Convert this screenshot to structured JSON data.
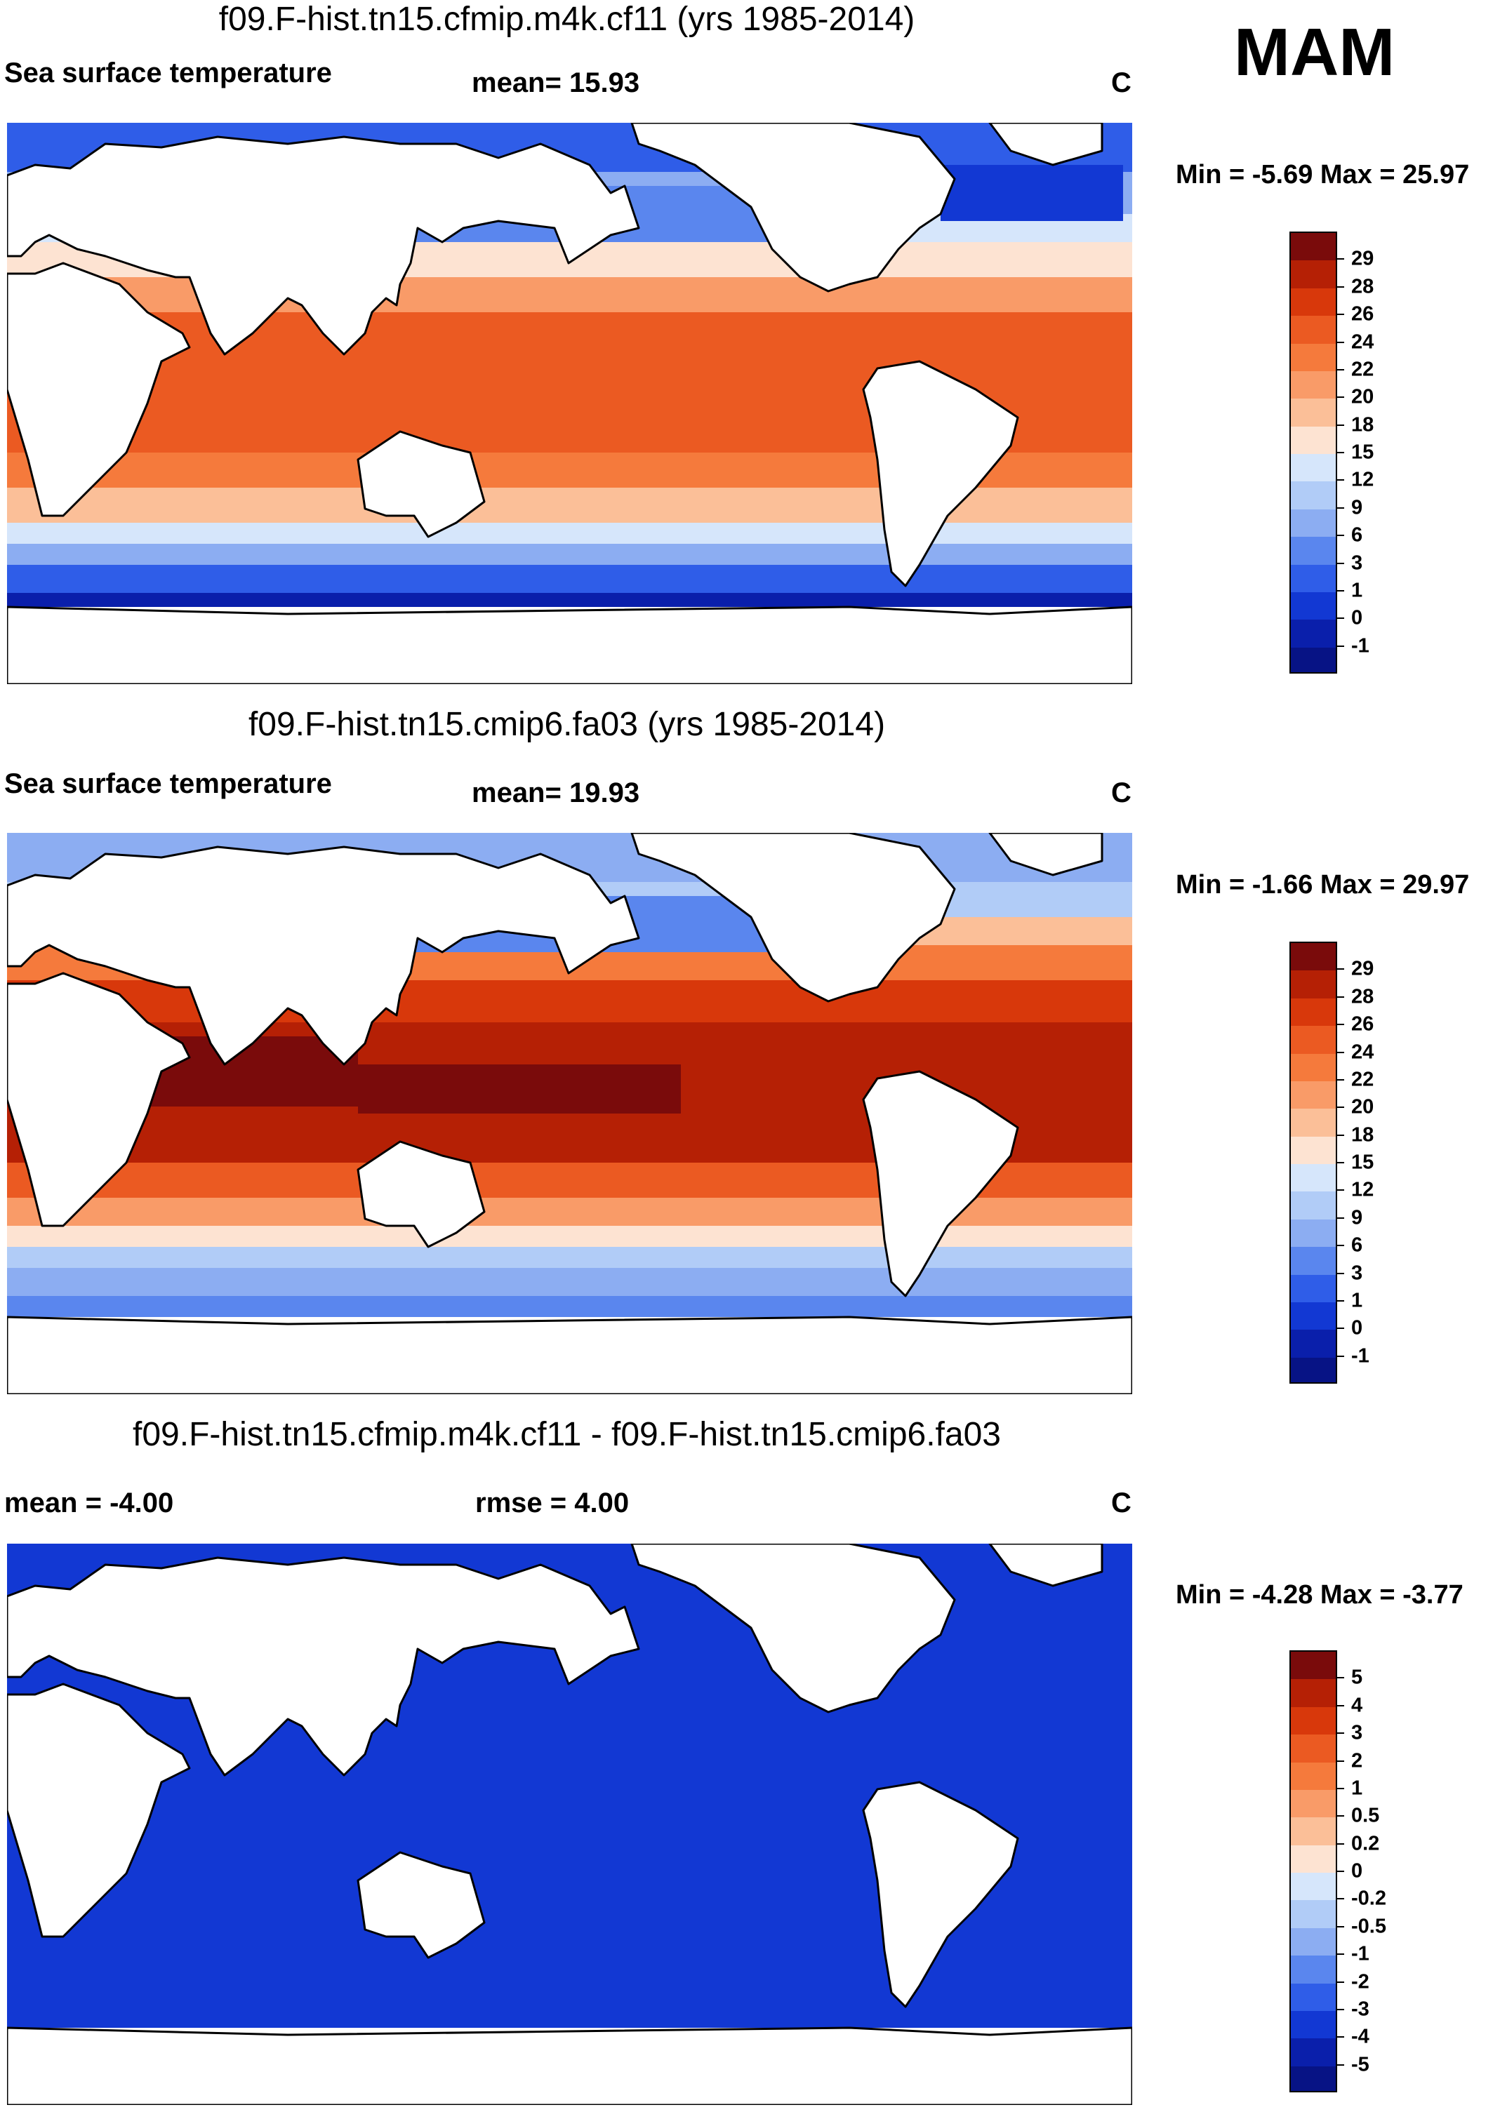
{
  "season": "MAM",
  "units": "C",
  "panels": [
    {
      "title": "f09.F-hist.tn15.cfmip.m4k.cf11 (yrs 1985-2014)",
      "left_label": "Sea surface temperature",
      "stat_text": "mean=  15.93",
      "units": "C",
      "minmax": "Min =  -5.69 Max =  25.97",
      "colorbar_labels": [
        "29",
        "28",
        "26",
        "24",
        "22",
        "20",
        "18",
        "15",
        "12",
        "9",
        "6",
        "3",
        "1",
        "0",
        "-1"
      ],
      "colorbar_colors": [
        "#7a0b0b",
        "#b52005",
        "#d8380b",
        "#eb5a22",
        "#f57a3c",
        "#f99b68",
        "#fbbf98",
        "#fde3d2",
        "#d6e6fb",
        "#b1ccf7",
        "#8cadf2",
        "#5a86ee",
        "#2f5de8",
        "#1238d3",
        "#0a1fab",
        "#071385"
      ],
      "mean_value": 15.93,
      "min_value": -5.69,
      "max_value": 25.97
    },
    {
      "title": "f09.F-hist.tn15.cmip6.fa03 (yrs 1985-2014)",
      "left_label": "Sea surface temperature",
      "stat_text": "mean=  19.93",
      "units": "C",
      "minmax": "Min =  -1.66 Max =  29.97",
      "colorbar_labels": [
        "29",
        "28",
        "26",
        "24",
        "22",
        "20",
        "18",
        "15",
        "12",
        "9",
        "6",
        "3",
        "1",
        "0",
        "-1"
      ],
      "colorbar_colors": [
        "#7a0b0b",
        "#b52005",
        "#d8380b",
        "#eb5a22",
        "#f57a3c",
        "#f99b68",
        "#fbbf98",
        "#fde3d2",
        "#d6e6fb",
        "#b1ccf7",
        "#8cadf2",
        "#5a86ee",
        "#2f5de8",
        "#1238d3",
        "#0a1fab",
        "#071385"
      ],
      "mean_value": 19.93,
      "min_value": -1.66,
      "max_value": 29.97
    },
    {
      "title": "f09.F-hist.tn15.cfmip.m4k.cf11 - f09.F-hist.tn15.cmip6.fa03",
      "left_label": "mean =  -4.00",
      "stat_text": "rmse =    4.00",
      "units": "C",
      "minmax": "Min =  -4.28 Max =  -3.77",
      "colorbar_labels": [
        "5",
        "4",
        "3",
        "2",
        "1",
        "0.5",
        "0.2",
        "0",
        "-0.2",
        "-0.5",
        "-1",
        "-2",
        "-3",
        "-4",
        "-5"
      ],
      "colorbar_colors": [
        "#7a0b0b",
        "#b52005",
        "#d8380b",
        "#eb5a22",
        "#f57a3c",
        "#f99b68",
        "#fbbf98",
        "#fde3d2",
        "#d6e6fb",
        "#b1ccf7",
        "#8cadf2",
        "#5a86ee",
        "#2f5de8",
        "#1238d3",
        "#0a1fab",
        "#071385"
      ],
      "mean_value": -4.0,
      "rmse_value": 4.0,
      "min_value": -4.28,
      "max_value": -3.77
    }
  ]
}
